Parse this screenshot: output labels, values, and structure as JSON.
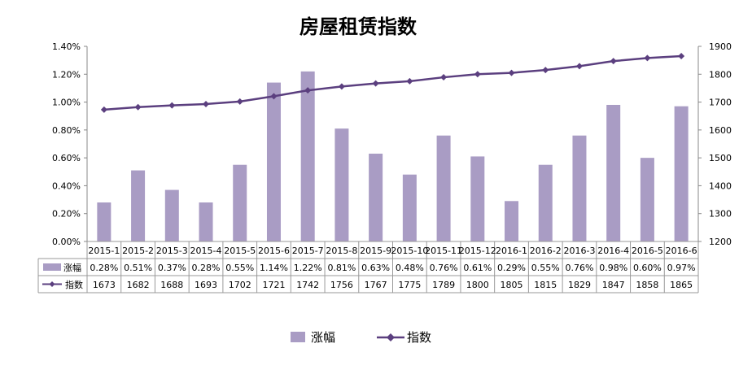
{
  "chart_data": {
    "type": "bar",
    "title": "房屋租赁指数",
    "categories": [
      "2015-1",
      "2015-2",
      "2015-3",
      "2015-4",
      "2015-5",
      "2015-6",
      "2015-7",
      "2015-8",
      "2015-9",
      "2015-10",
      "2015-11",
      "2015-12",
      "2016-1",
      "2016-2",
      "2016-3",
      "2016-4",
      "2016-5",
      "2016-6"
    ],
    "series": [
      {
        "name": "涨幅",
        "type": "bar",
        "axis": "left",
        "color": "#a99cc4",
        "values": [
          0.28,
          0.51,
          0.37,
          0.28,
          0.55,
          1.14,
          1.22,
          0.81,
          0.63,
          0.48,
          0.76,
          0.61,
          0.29,
          0.55,
          0.76,
          0.98,
          0.6,
          0.97
        ],
        "labels": [
          "0.28%",
          "0.51%",
          "0.37%",
          "0.28%",
          "0.55%",
          "1.14%",
          "1.22%",
          "0.81%",
          "0.63%",
          "0.48%",
          "0.76%",
          "0.61%",
          "0.29%",
          "0.55%",
          "0.76%",
          "0.98%",
          "0.60%",
          "0.97%"
        ]
      },
      {
        "name": "指数",
        "type": "line",
        "axis": "right",
        "color": "#5b3f7f",
        "values": [
          1673,
          1682,
          1688,
          1693,
          1702,
          1721,
          1742,
          1756,
          1767,
          1775,
          1789,
          1800,
          1805,
          1815,
          1829,
          1847,
          1858,
          1865
        ],
        "labels": [
          "1673",
          "1682",
          "1688",
          "1693",
          "1702",
          "1721",
          "1742",
          "1756",
          "1767",
          "1775",
          "1789",
          "1800",
          "1805",
          "1815",
          "1829",
          "1847",
          "1858",
          "1865"
        ]
      }
    ],
    "y_left": {
      "min": 0,
      "max": 1.4,
      "ticks": [
        "0.00%",
        "0.20%",
        "0.40%",
        "0.60%",
        "0.80%",
        "1.00%",
        "1.20%",
        "1.40%"
      ]
    },
    "y_right": {
      "min": 1200,
      "max": 1900,
      "ticks": [
        "1200",
        "1300",
        "1400",
        "1500",
        "1600",
        "1700",
        "1800",
        "1900"
      ]
    },
    "grid": false,
    "data_table": true,
    "legend_position": "bottom"
  }
}
